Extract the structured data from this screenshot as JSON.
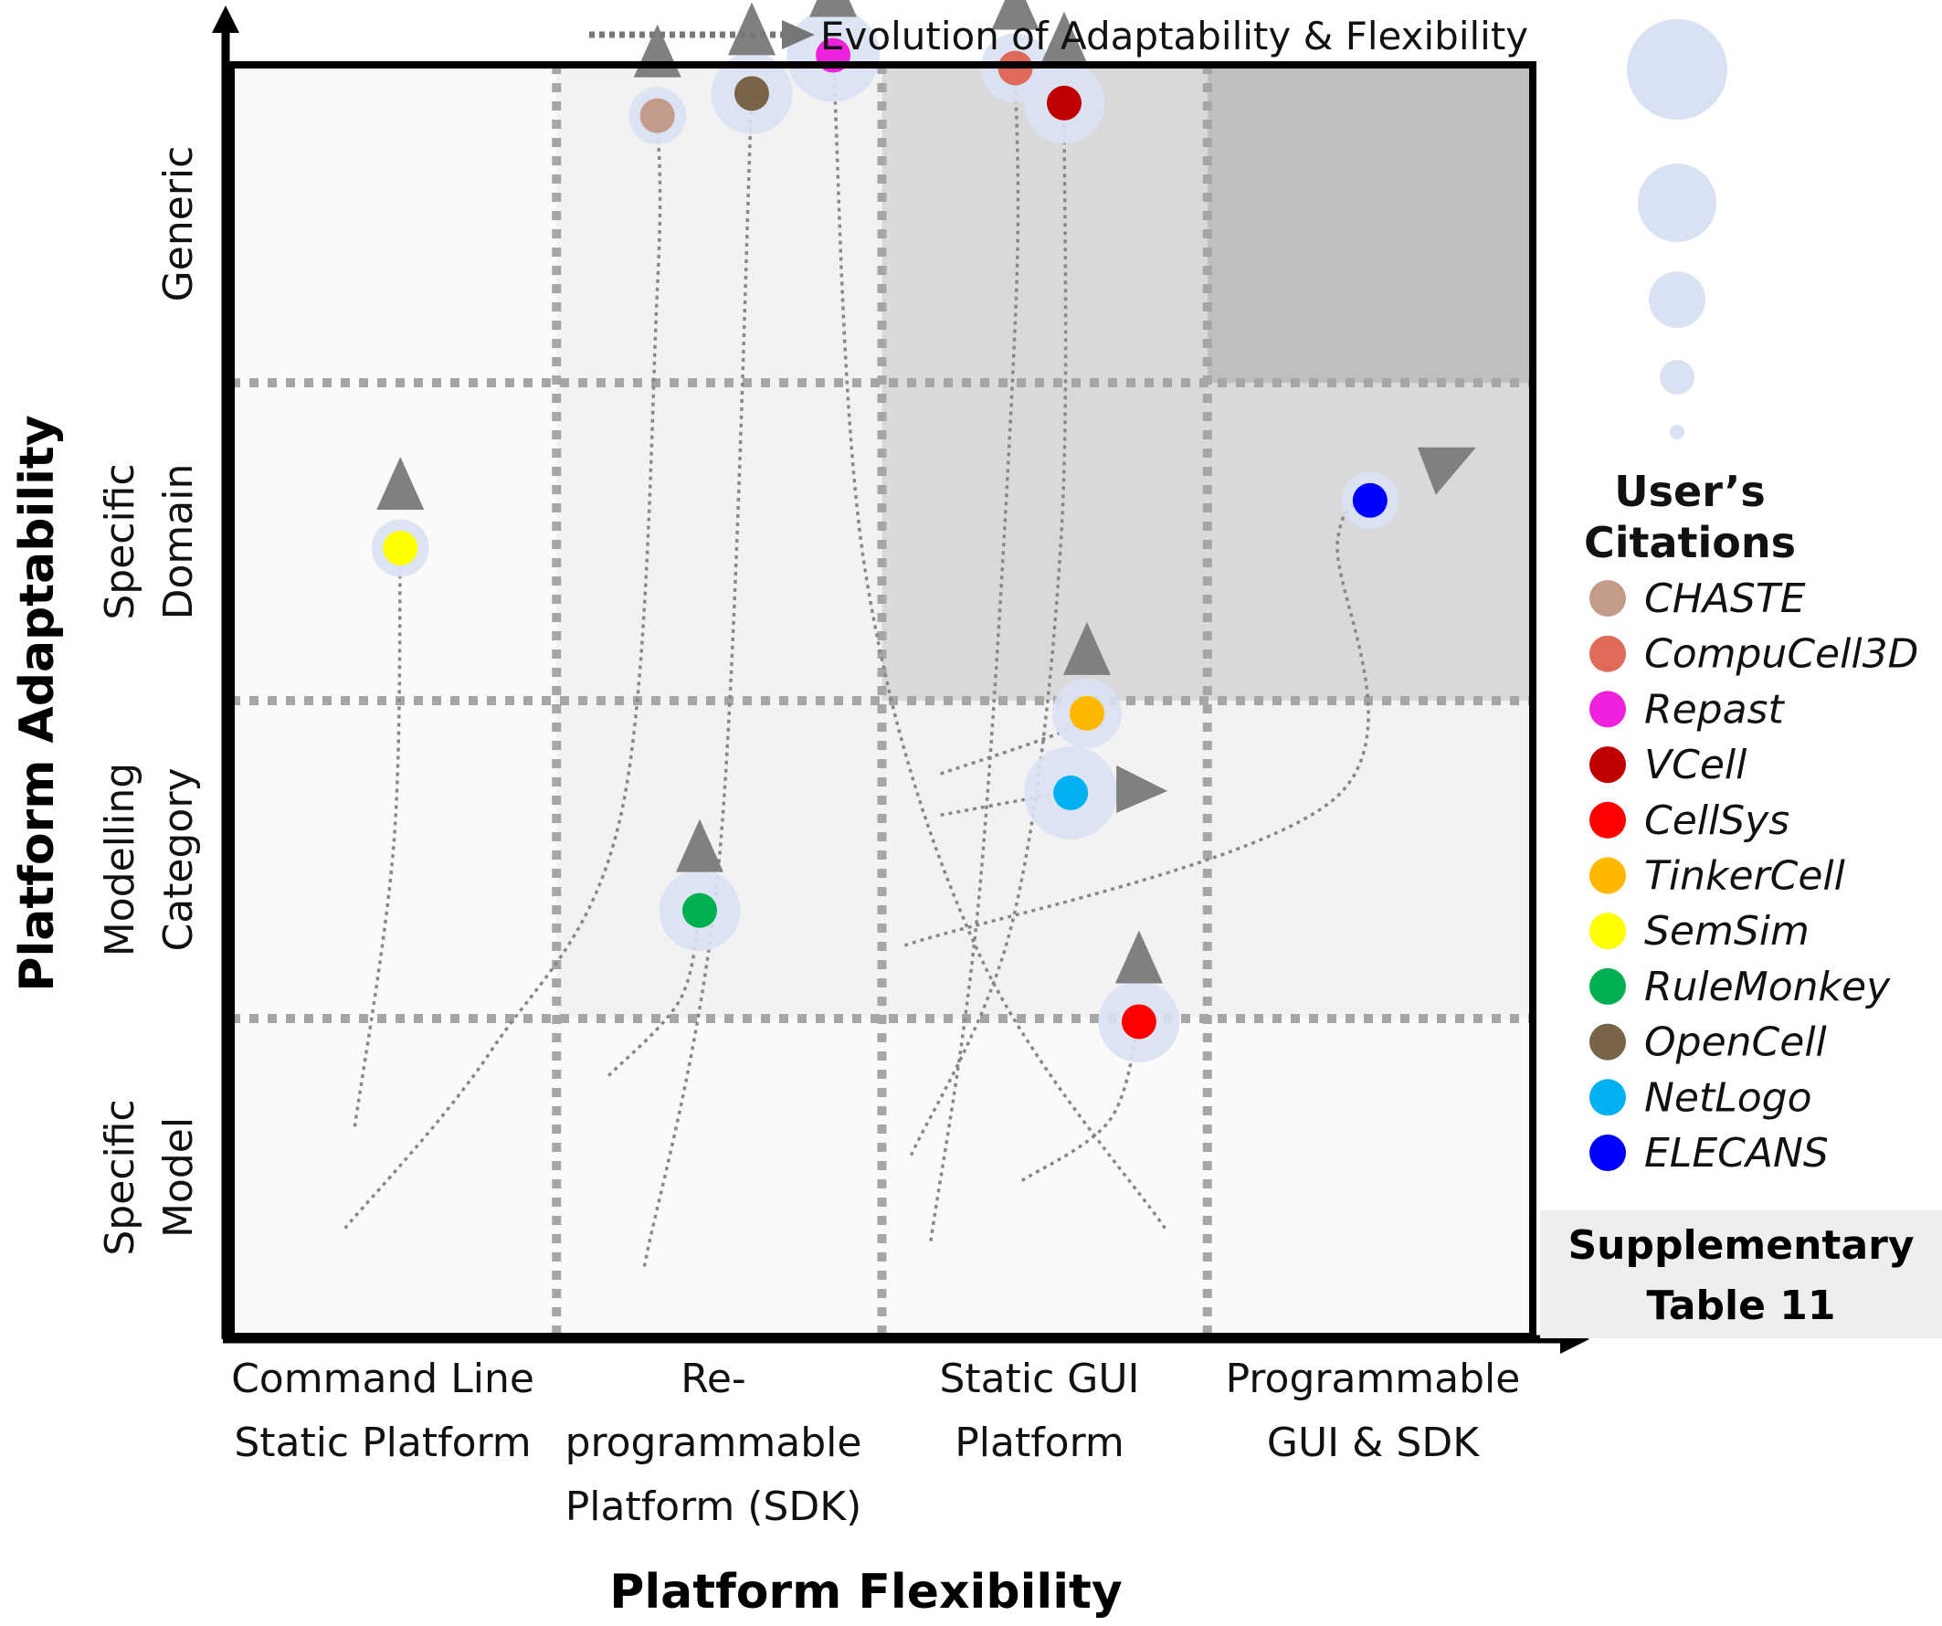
{
  "chart_data": {
    "type": "scatter",
    "title": "",
    "xlabel": "Platform Flexibility",
    "ylabel": "Platform Adaptability",
    "x_categories": [
      [
        "Command Line",
        "Static Platform"
      ],
      [
        "Re-",
        "programmable",
        "Platform (SDK)"
      ],
      [
        "Static GUI",
        "Platform"
      ],
      [
        "Programmable",
        "GUI & SDK"
      ]
    ],
    "y_categories": [
      [
        "Specific",
        "Model"
      ],
      [
        "Modelling",
        "Category"
      ],
      [
        "Specific",
        "Domain"
      ],
      [
        "Generic"
      ]
    ],
    "xlim": [
      0,
      4
    ],
    "ylim": [
      0,
      4
    ],
    "evolution_label": "Evolution of Adaptability & Flexibility",
    "legend_title": [
      "User’s",
      "Citations"
    ],
    "supplementary_label": [
      "Supplementary",
      "Table 11"
    ],
    "size_legend": [
      5,
      4,
      3,
      2,
      1
    ],
    "series": [
      {
        "name": "CHASTE",
        "color": "#c49a8a",
        "citations": 1.5,
        "x": 1.31,
        "y": 3.84,
        "arrow": "up",
        "trail": [
          [
            0.35,
            0.34
          ],
          [
            0.8,
            0.9
          ],
          [
            1.2,
            1.65
          ],
          [
            1.31,
            3.3
          ],
          [
            1.31,
            3.84
          ]
        ]
      },
      {
        "name": "CompuCell3D",
        "color": "#e06a5a",
        "citations": 2,
        "x": 2.41,
        "y": 3.99,
        "arrow": "up",
        "trail": [
          [
            2.15,
            0.3
          ],
          [
            2.3,
            1.4
          ],
          [
            2.41,
            3.2
          ],
          [
            2.41,
            3.99
          ]
        ]
      },
      {
        "name": "Repast",
        "color": "#ee22dd",
        "citations": 3,
        "x": 1.85,
        "y": 4.03,
        "arrow": "up",
        "trail": [
          [
            2.87,
            0.34
          ],
          [
            2.3,
            1.2
          ],
          [
            1.95,
            2.4
          ],
          [
            1.85,
            4.03
          ]
        ]
      },
      {
        "name": "VCell",
        "color": "#c00000",
        "citations": 2.5,
        "x": 2.56,
        "y": 3.88,
        "arrow": "up",
        "trail": [
          [
            2.09,
            0.57
          ],
          [
            2.4,
            1.3
          ],
          [
            2.55,
            2.5
          ],
          [
            2.56,
            3.88
          ]
        ]
      },
      {
        "name": "CellSys",
        "color": "#ff0000",
        "citations": 2.5,
        "x": 2.79,
        "y": 0.99,
        "arrow": "up",
        "trail": [
          [
            2.43,
            0.49
          ],
          [
            2.7,
            0.68
          ],
          [
            2.79,
            0.99
          ]
        ]
      },
      {
        "name": "TinkerCell",
        "color": "#ffb800",
        "citations": 2,
        "x": 2.63,
        "y": 1.96,
        "arrow": "up",
        "trail": [
          [
            2.18,
            1.77
          ],
          [
            2.55,
            1.9
          ],
          [
            2.63,
            1.96
          ]
        ]
      },
      {
        "name": "SemSim",
        "color": "#ffff00",
        "citations": 1.5,
        "x": 0.52,
        "y": 2.48,
        "arrow": "up",
        "trail": [
          [
            0.38,
            0.66
          ],
          [
            0.5,
            1.55
          ],
          [
            0.52,
            2.48
          ]
        ]
      },
      {
        "name": "RuleMonkey",
        "color": "#00b050",
        "citations": 2.5,
        "x": 1.44,
        "y": 1.34,
        "arrow": "up",
        "trail": [
          [
            1.16,
            0.82
          ],
          [
            1.38,
            1.06
          ],
          [
            1.44,
            1.34
          ]
        ]
      },
      {
        "name": "OpenCell",
        "color": "#7a6448",
        "citations": 2.5,
        "x": 1.6,
        "y": 3.91,
        "arrow": "up",
        "trail": [
          [
            1.27,
            0.22
          ],
          [
            1.5,
            1.5
          ],
          [
            1.6,
            3.91
          ]
        ]
      },
      {
        "name": "NetLogo",
        "color": "#00b0f0",
        "citations": 3,
        "x": 2.58,
        "y": 1.71,
        "arrow": "right",
        "trail": [
          [
            2.18,
            1.64
          ],
          [
            2.5,
            1.7
          ],
          [
            2.58,
            1.71
          ]
        ]
      },
      {
        "name": "ELECANS",
        "color": "#0000ff",
        "citations": 1.5,
        "x": 3.5,
        "y": 2.63,
        "arrow": "up-right",
        "trail": [
          [
            2.07,
            1.23
          ],
          [
            3.4,
            1.7
          ],
          [
            3.4,
            2.5
          ],
          [
            3.5,
            2.63
          ]
        ]
      }
    ]
  }
}
